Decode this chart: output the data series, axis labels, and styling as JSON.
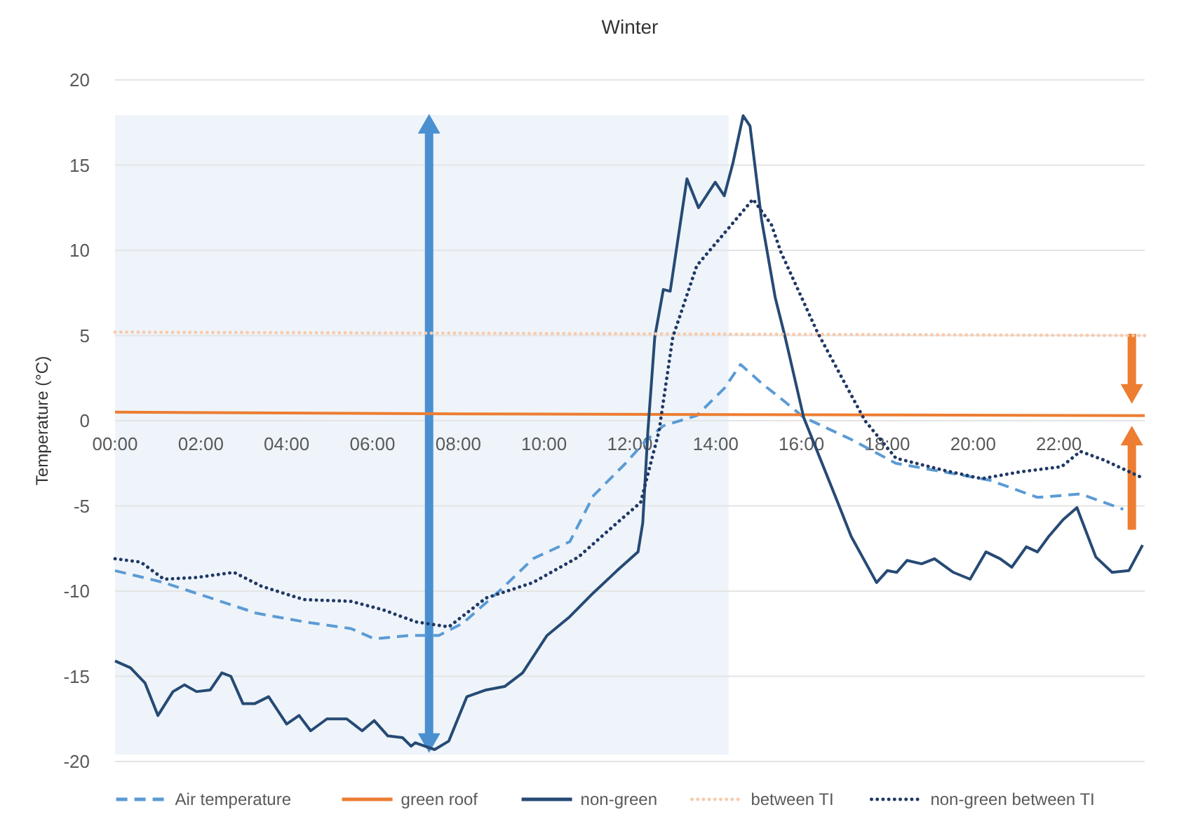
{
  "chart_data": {
    "type": "line",
    "title": "Winter",
    "ylabel": "Temperature (°C)",
    "xlim": [
      0,
      24
    ],
    "ylim": [
      -20,
      20
    ],
    "xticks": [
      {
        "value": 0,
        "label": "00:00"
      },
      {
        "value": 2,
        "label": "02:00"
      },
      {
        "value": 4,
        "label": "04:00"
      },
      {
        "value": 6,
        "label": "06:00"
      },
      {
        "value": 8,
        "label": "08:00"
      },
      {
        "value": 10,
        "label": "10:00"
      },
      {
        "value": 12,
        "label": "12:00"
      },
      {
        "value": 14,
        "label": "14:00"
      },
      {
        "value": 16,
        "label": "16:00"
      },
      {
        "value": 18,
        "label": "18:00"
      },
      {
        "value": 20,
        "label": "20:00"
      },
      {
        "value": 22,
        "label": "22:00"
      }
    ],
    "yticks": [
      -20,
      -15,
      -10,
      -5,
      0,
      5,
      10,
      15,
      20
    ],
    "grid": "y",
    "legend": "bottom",
    "bands": [
      {
        "axis": "x",
        "from": 0,
        "to": 14.3,
        "color": "#eef4fa"
      }
    ],
    "series": [
      {
        "name": "Air temperature",
        "color": "#5b9bd5",
        "line_style": "dashed",
        "x": [
          0,
          1.14,
          2.22,
          3.3,
          4.4,
          5.5,
          6.04,
          6.9,
          7.55,
          8.1,
          9.0,
          9.74,
          10.6,
          11.15,
          11.9,
          12.36,
          12.78,
          13.56,
          14.2,
          14.58,
          15.07,
          15.62,
          16.05,
          17.16,
          18.2,
          19.3,
          20.4,
          21.5,
          22.5,
          23.5
        ],
        "values": [
          -8.8,
          -9.5,
          -10.4,
          -11.3,
          -11.8,
          -12.2,
          -12.8,
          -12.6,
          -12.6,
          -11.9,
          -9.9,
          -8.1,
          -7.1,
          -4.4,
          -2.5,
          -1.2,
          -0.3,
          0.3,
          1.9,
          3.3,
          2.2,
          1.1,
          0.2,
          -1.1,
          -2.5,
          -3.0,
          -3.5,
          -4.5,
          -4.3,
          -5.2
        ]
      },
      {
        "name": "green roof",
        "color": "#ed7d31",
        "line_style": "solid",
        "x": [
          0,
          8,
          24
        ],
        "values": [
          0.5,
          0.4,
          0.3
        ]
      },
      {
        "name": "non-green",
        "color": "#264a74",
        "line_style": "solid",
        "x": [
          0,
          0.36,
          0.7,
          1.0,
          1.35,
          1.62,
          1.9,
          2.22,
          2.49,
          2.7,
          2.98,
          3.26,
          3.58,
          4.0,
          4.29,
          4.56,
          4.94,
          5.4,
          5.76,
          6.04,
          6.36,
          6.7,
          6.9,
          7.0,
          7.45,
          7.78,
          8.2,
          8.65,
          9.08,
          9.5,
          10.07,
          10.6,
          11.15,
          11.7,
          12.19,
          12.3,
          12.42,
          12.58,
          12.78,
          12.94,
          13.33,
          13.6,
          13.99,
          14.2,
          14.4,
          14.64,
          14.8,
          15.07,
          15.39,
          15.62,
          16.05,
          16.83,
          17.16,
          17.75,
          18.0,
          18.22,
          18.46,
          18.8,
          19.1,
          19.54,
          19.93,
          20.3,
          20.63,
          20.9,
          21.24,
          21.5,
          21.76,
          22.1,
          22.42,
          22.86,
          23.24,
          23.63,
          23.95
        ],
        "values": [
          -14.1,
          -14.5,
          -15.4,
          -17.3,
          -15.9,
          -15.5,
          -15.9,
          -15.8,
          -14.8,
          -15.0,
          -16.6,
          -16.6,
          -16.2,
          -17.8,
          -17.3,
          -18.2,
          -17.5,
          -17.5,
          -18.2,
          -17.6,
          -18.5,
          -18.6,
          -19.1,
          -18.9,
          -19.3,
          -18.8,
          -16.2,
          -15.8,
          -15.6,
          -14.8,
          -12.6,
          -11.5,
          -10.1,
          -8.8,
          -7.7,
          -6.0,
          -0.6,
          4.9,
          7.7,
          7.6,
          14.2,
          12.5,
          14.0,
          13.2,
          15.1,
          17.9,
          17.3,
          11.8,
          7.2,
          4.9,
          0.2,
          -4.7,
          -6.8,
          -9.5,
          -8.8,
          -8.9,
          -8.2,
          -8.4,
          -8.1,
          -8.9,
          -9.3,
          -7.7,
          -8.1,
          -8.6,
          -7.4,
          -7.7,
          -6.8,
          -5.8,
          -5.1,
          -8.0,
          -8.9,
          -8.8,
          -7.3
        ]
      },
      {
        "name": "between TI",
        "color": "#f8cbad",
        "line_style": "dotted",
        "x": [
          0,
          24
        ],
        "values": [
          5.2,
          5.0
        ]
      },
      {
        "name": "non-green between TI",
        "color": "#203864",
        "line_style": "dotted",
        "x": [
          0,
          0.6,
          1.14,
          1.9,
          2.77,
          3.4,
          4.4,
          5.5,
          6.25,
          6.9,
          7.0,
          7.78,
          8.65,
          9.74,
          10.8,
          11.7,
          12.25,
          12.68,
          13.0,
          13.56,
          14.3,
          14.87,
          15.3,
          15.52,
          16.37,
          17.48,
          18.2,
          19.3,
          20.2,
          21.1,
          22.06,
          22.5,
          23.04,
          23.9
        ],
        "values": [
          -8.1,
          -8.3,
          -9.3,
          -9.2,
          -8.9,
          -9.7,
          -10.5,
          -10.6,
          -11.1,
          -11.7,
          -11.8,
          -12.1,
          -10.4,
          -9.5,
          -8.0,
          -6.0,
          -4.8,
          -0.6,
          4.9,
          9.1,
          11.3,
          13.0,
          11.5,
          9.9,
          5.2,
          0.0,
          -2.2,
          -2.9,
          -3.4,
          -3.0,
          -2.7,
          -1.8,
          -2.3,
          -3.3
        ]
      }
    ]
  }
}
